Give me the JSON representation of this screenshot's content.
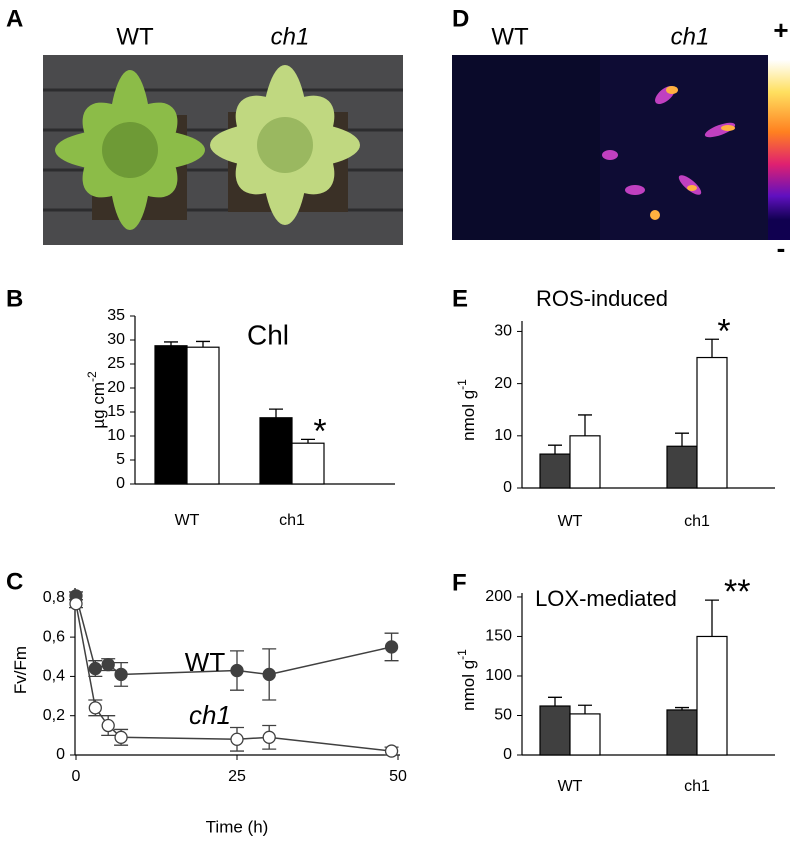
{
  "panels": {
    "A": {
      "letter": "A",
      "labels": [
        "WT",
        "ch1"
      ]
    },
    "D": {
      "letter": "D",
      "labels": [
        "WT",
        "ch1"
      ],
      "scale_max": "+",
      "scale_min": "-"
    }
  },
  "chart_data": [
    {
      "type": "bar",
      "letter": "B",
      "annotation_title": "Chl",
      "y_label": "µg cm",
      "y_label_sup": "-2",
      "star": "*",
      "categories": [
        "WT",
        "ch1"
      ],
      "series": [
        {
          "color": "#000000",
          "values": [
            28.8,
            13.8
          ],
          "errors": [
            0.8,
            1.8
          ]
        },
        {
          "color": "#ffffff",
          "values": [
            28.5,
            8.5
          ],
          "errors": [
            1.2,
            0.8
          ]
        }
      ],
      "ylim": [
        0,
        35
      ],
      "yticks": [
        0,
        5,
        10,
        15,
        20,
        25,
        30,
        35
      ]
    },
    {
      "type": "line",
      "letter": "C",
      "x_label": "Time (h)",
      "y_label": "Fv/Fm",
      "x": [
        0,
        3,
        5,
        7,
        25,
        30,
        49
      ],
      "series": [
        {
          "name": "WT",
          "color": "#404040",
          "marker_fill": "#404040",
          "values": [
            0.81,
            0.44,
            0.46,
            0.41,
            0.43,
            0.41,
            0.55
          ],
          "errors": [
            0.02,
            0.04,
            0.03,
            0.06,
            0.1,
            0.13,
            0.07
          ]
        },
        {
          "name": "ch1",
          "color": "#404040",
          "marker_fill": "#ffffff",
          "values": [
            0.77,
            0.24,
            0.15,
            0.09,
            0.08,
            0.09,
            0.02
          ],
          "errors": [
            0.02,
            0.04,
            0.05,
            0.04,
            0.06,
            0.06,
            0.02
          ]
        }
      ],
      "xlim": [
        0,
        50
      ],
      "xticks": [
        0,
        25,
        50
      ],
      "ylim": [
        0,
        0.85
      ],
      "yticks": [
        0,
        {
          "value": 0.2,
          "label": "0,2"
        },
        {
          "value": 0.4,
          "label": "0,4"
        },
        {
          "value": 0.6,
          "label": "0,6"
        },
        {
          "value": 0.8,
          "label": "0,8"
        }
      ]
    },
    {
      "type": "bar",
      "letter": "E",
      "title": "ROS-induced",
      "y_label": "nmol g",
      "y_label_sup": "-1",
      "star": "*",
      "categories": [
        "WT",
        "ch1"
      ],
      "series": [
        {
          "color": "#404040",
          "values": [
            6.5,
            8
          ],
          "errors": [
            1.7,
            2.5
          ]
        },
        {
          "color": "#ffffff",
          "values": [
            10,
            25
          ],
          "errors": [
            4,
            3.5
          ]
        }
      ],
      "ylim": [
        0,
        32
      ],
      "yticks": [
        0,
        10,
        20,
        30
      ]
    },
    {
      "type": "bar",
      "letter": "F",
      "title": "LOX-mediated",
      "y_label": "nmol g",
      "y_label_sup": "-1",
      "star": "**",
      "categories": [
        "WT",
        "ch1"
      ],
      "series": [
        {
          "color": "#404040",
          "values": [
            62,
            57
          ],
          "errors": [
            11,
            3
          ]
        },
        {
          "color": "#ffffff",
          "values": [
            52,
            150
          ],
          "errors": [
            11,
            46
          ]
        }
      ],
      "ylim": [
        0,
        205
      ],
      "yticks": [
        0,
        50,
        100,
        150,
        200
      ]
    }
  ]
}
